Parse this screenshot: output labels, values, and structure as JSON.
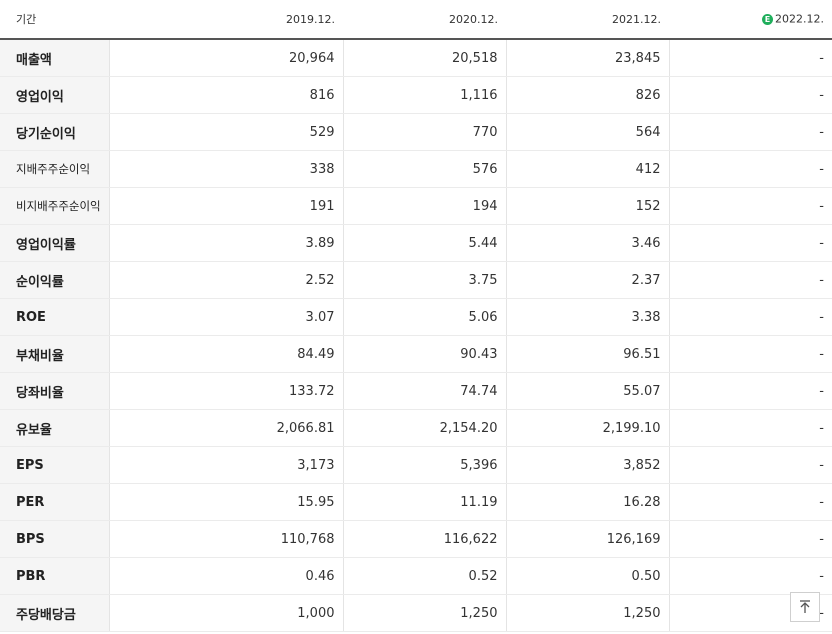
{
  "header": {
    "label": "기간",
    "years": [
      "2019.12.",
      "2020.12.",
      "2021.12.",
      "2022.12."
    ],
    "estimate_badge": "E"
  },
  "rows": [
    {
      "label": "매출액",
      "values": [
        "20,964",
        "20,518",
        "23,845",
        "-"
      ]
    },
    {
      "label": "영업이익",
      "values": [
        "816",
        "1,116",
        "826",
        "-"
      ]
    },
    {
      "label": "당기순이익",
      "values": [
        "529",
        "770",
        "564",
        "-"
      ]
    },
    {
      "label": "지배주주순이익",
      "values": [
        "338",
        "576",
        "412",
        "-"
      ]
    },
    {
      "label": "비지배주주순이익",
      "values": [
        "191",
        "194",
        "152",
        "-"
      ]
    },
    {
      "label": "영업이익률",
      "values": [
        "3.89",
        "5.44",
        "3.46",
        "-"
      ]
    },
    {
      "label": "순이익률",
      "values": [
        "2.52",
        "3.75",
        "2.37",
        "-"
      ]
    },
    {
      "label": "ROE",
      "values": [
        "3.07",
        "5.06",
        "3.38",
        "-"
      ]
    },
    {
      "label": "부채비율",
      "values": [
        "84.49",
        "90.43",
        "96.51",
        "-"
      ]
    },
    {
      "label": "당좌비율",
      "values": [
        "133.72",
        "74.74",
        "55.07",
        "-"
      ]
    },
    {
      "label": "유보율",
      "values": [
        "2,066.81",
        "2,154.20",
        "2,199.10",
        "-"
      ]
    },
    {
      "label": "EPS",
      "values": [
        "3,173",
        "5,396",
        "3,852",
        "-"
      ]
    },
    {
      "label": "PER",
      "values": [
        "15.95",
        "11.19",
        "16.28",
        "-"
      ]
    },
    {
      "label": "BPS",
      "values": [
        "110,768",
        "116,622",
        "126,169",
        "-"
      ]
    },
    {
      "label": "PBR",
      "values": [
        "0.46",
        "0.52",
        "0.50",
        "-"
      ]
    },
    {
      "label": "주당배당금",
      "values": [
        "1,000",
        "1,250",
        "1,250",
        "-"
      ]
    }
  ],
  "colors": {
    "estimate_badge": "#1fae5b",
    "label_background": "#f5f5f5",
    "header_rule": "#555555"
  },
  "icons": {
    "scroll_top": "arrow-up-to-line-icon"
  }
}
